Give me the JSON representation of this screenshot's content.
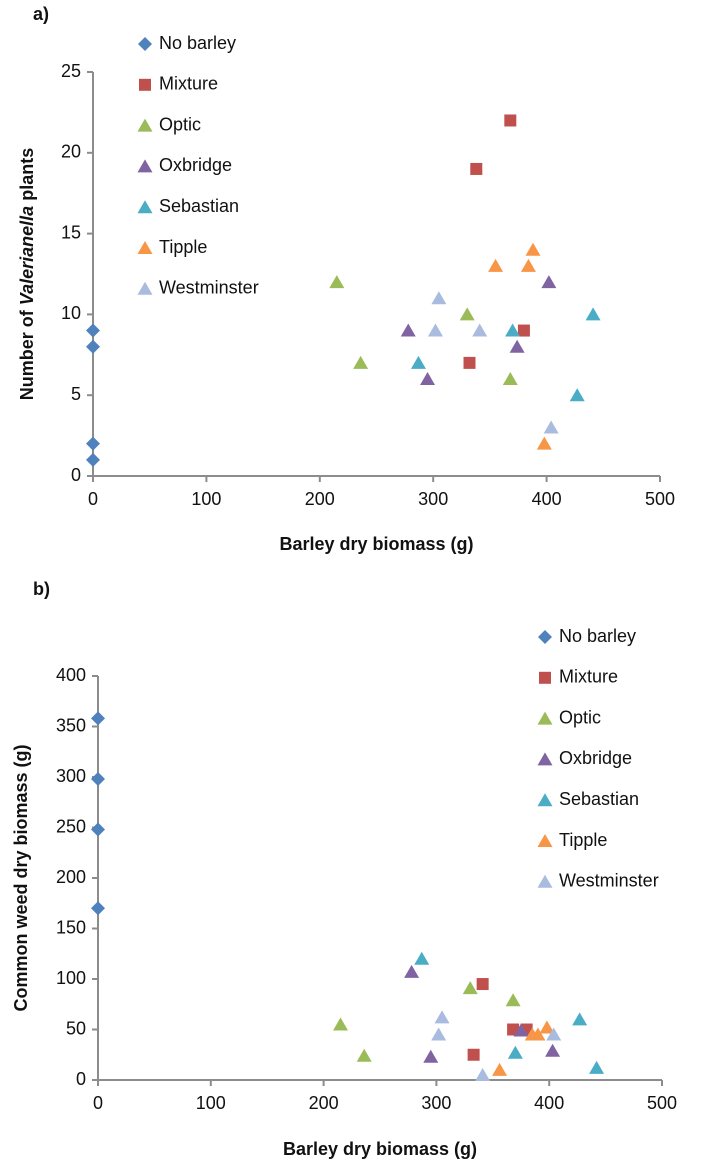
{
  "chart_data": [
    {
      "type": "scatter",
      "panel_label": "a)",
      "x_label": "Barley dry biomass (g)",
      "y_label": {
        "prefix": "Number of ",
        "italic": "Valerianella",
        "suffix": " plants"
      },
      "xlim": [
        0,
        500
      ],
      "xticks": [
        0,
        100,
        200,
        300,
        400,
        500
      ],
      "ylim": [
        0,
        25
      ],
      "yticks": [
        0,
        5,
        10,
        15,
        20,
        25
      ],
      "grid": false,
      "legend": "top-left",
      "series": [
        {
          "name": "No barley",
          "color": "#4f81bd",
          "marker": "diamond",
          "x": [
            0,
            0,
            0,
            0
          ],
          "values": [
            9,
            8,
            2,
            1
          ]
        },
        {
          "name": "Mixture",
          "color": "#c0504d",
          "marker": "square",
          "x": [
            368,
            338,
            380,
            332
          ],
          "values": [
            22,
            19,
            9,
            7
          ]
        },
        {
          "name": "Optic",
          "color": "#9bbb59",
          "marker": "triangle",
          "x": [
            215,
            236,
            330,
            368
          ],
          "values": [
            12,
            7,
            10,
            6
          ]
        },
        {
          "name": "Oxbridge",
          "color": "#8064a2",
          "marker": "triangle",
          "x": [
            278,
            295,
            402,
            374
          ],
          "values": [
            9,
            6,
            12,
            8
          ]
        },
        {
          "name": "Sebastian",
          "color": "#4bacc6",
          "marker": "triangle",
          "x": [
            287,
            370,
            441,
            427
          ],
          "values": [
            7,
            9,
            10,
            5
          ]
        },
        {
          "name": "Tipple",
          "color": "#f79646",
          "marker": "triangle",
          "x": [
            355,
            388,
            384,
            398
          ],
          "values": [
            13,
            14,
            13,
            2
          ]
        },
        {
          "name": "Westminster",
          "color": "#a9bcdf",
          "marker": "triangle",
          "x": [
            305,
            302,
            341,
            404
          ],
          "values": [
            11,
            9,
            9,
            3
          ]
        }
      ]
    },
    {
      "type": "scatter",
      "panel_label": "b)",
      "x_label": "Barley dry biomass (g)",
      "y_label": {
        "prefix": "Common weed dry biomass (g)",
        "italic": "",
        "suffix": ""
      },
      "xlim": [
        0,
        500
      ],
      "xticks": [
        0,
        100,
        200,
        300,
        400,
        500
      ],
      "ylim": [
        0,
        400
      ],
      "yticks": [
        0,
        50,
        100,
        150,
        200,
        250,
        300,
        350,
        400
      ],
      "grid": false,
      "legend": "top-right",
      "series": [
        {
          "name": "No barley",
          "color": "#4f81bd",
          "marker": "diamond",
          "x": [
            0,
            0,
            0,
            0
          ],
          "values": [
            358,
            298,
            248,
            170
          ]
        },
        {
          "name": "Mixture",
          "color": "#c0504d",
          "marker": "square",
          "x": [
            341,
            368,
            380,
            333
          ],
          "values": [
            95,
            50,
            50,
            25
          ]
        },
        {
          "name": "Optic",
          "color": "#9bbb59",
          "marker": "triangle",
          "x": [
            215,
            236,
            330,
            368
          ],
          "values": [
            55,
            24,
            91,
            79
          ]
        },
        {
          "name": "Oxbridge",
          "color": "#8064a2",
          "marker": "triangle",
          "x": [
            278,
            295,
            375,
            403
          ],
          "values": [
            107,
            23,
            49,
            29
          ]
        },
        {
          "name": "Sebastian",
          "color": "#4bacc6",
          "marker": "triangle",
          "x": [
            287,
            370,
            427,
            442
          ],
          "values": [
            120,
            27,
            60,
            12
          ]
        },
        {
          "name": "Tipple",
          "color": "#f79646",
          "marker": "triangle",
          "x": [
            356,
            385,
            390,
            398
          ],
          "values": [
            10,
            45,
            45,
            52
          ]
        },
        {
          "name": "Westminster",
          "color": "#a9bcdf",
          "marker": "triangle",
          "x": [
            305,
            302,
            341,
            404
          ],
          "values": [
            62,
            45,
            5,
            45
          ]
        }
      ]
    }
  ]
}
